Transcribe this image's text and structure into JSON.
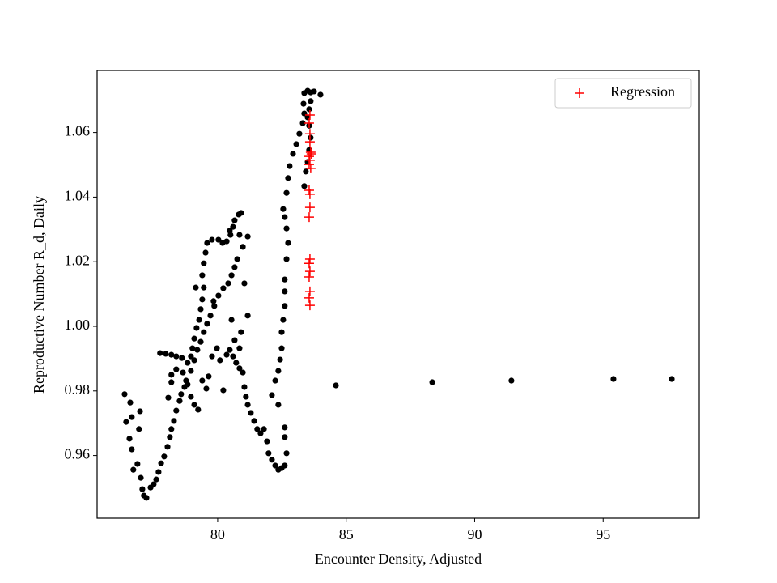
{
  "chart_data": {
    "type": "scatter",
    "x_label": "Encounter Density, Adjusted",
    "y_label": "Reproductive Number R_d, Daily",
    "xlim": [
      75.31,
      98.74
    ],
    "ylim": [
      0.9406,
      1.0792
    ],
    "xticks": [
      80,
      85,
      90,
      95
    ],
    "yticks": [
      0.96,
      0.98,
      {
        "value": 1.0,
        "label": "1.00"
      },
      1.02,
      1.04,
      1.06
    ],
    "legend": "upper right",
    "series": [
      {
        "color": "#000000",
        "marker": "dot",
        "x": [
          76.38,
          76.44,
          76.6,
          76.66,
          76.57,
          76.66,
          76.72,
          76.88,
          76.94,
          76.98,
          77.01,
          77.07,
          77.13,
          77.23,
          77.39,
          77.51,
          77.61,
          77.7,
          77.8,
          77.92,
          78.05,
          78.14,
          78.2,
          78.3,
          78.39,
          78.52,
          78.58,
          78.71,
          78.77,
          78.65,
          78.39,
          78.2,
          78.2,
          78.08,
          77.76,
          77.98,
          78.2,
          78.39,
          78.61,
          78.83,
          78.96,
          79.02,
          79.09,
          79.18,
          79.28,
          79.34,
          79.4,
          79.46,
          79.4,
          79.46,
          79.53,
          79.59,
          79.78,
          80.03,
          80.19,
          80.35,
          80.5,
          80.6,
          80.66,
          80.82,
          80.91,
          80.85,
          80.98,
          80.76,
          80.66,
          80.54,
          80.41,
          80.22,
          80.03,
          79.87,
          79.72,
          79.59,
          79.46,
          79.34,
          79.21,
          79.09,
          78.96,
          78.83,
          78.96,
          79.09,
          79.24,
          79.4,
          79.56,
          79.65,
          79.78,
          79.97,
          80.09,
          80.22,
          80.35,
          80.47,
          80.6,
          80.72,
          80.85,
          80.98,
          81.04,
          81.1,
          81.17,
          81.29,
          81.42,
          81.54,
          81.67,
          81.8,
          81.92,
          81.98,
          82.11,
          82.24,
          82.36,
          82.49,
          82.61,
          82.68,
          82.61,
          82.61,
          82.36,
          82.11,
          82.24,
          82.36,
          82.43,
          82.49,
          82.49,
          82.55,
          82.61,
          82.61,
          82.61,
          82.68,
          82.74,
          82.68,
          82.61,
          82.55,
          82.68,
          82.74,
          82.8,
          82.93,
          83.06,
          83.18,
          83.31,
          83.37,
          83.34,
          83.37,
          83.5,
          83.62,
          83.75,
          84.0,
          83.62,
          83.56,
          83.5,
          83.56,
          83.62,
          83.56,
          83.5,
          83.43,
          83.37,
          81.17,
          81.04,
          81.17,
          80.66,
          80.85,
          80.54,
          80.91,
          80.47,
          79.15,
          79.84,
          84.6,
          88.35,
          91.43,
          95.4,
          97.67
        ],
        "y": [
          0.979,
          0.9704,
          0.9764,
          0.9719,
          0.9652,
          0.9619,
          0.9556,
          0.9574,
          0.9682,
          0.9737,
          0.9531,
          0.9496,
          0.9476,
          0.9469,
          0.9501,
          0.9511,
          0.9526,
          0.9549,
          0.9576,
          0.9597,
          0.9627,
          0.9657,
          0.9682,
          0.9707,
          0.9739,
          0.9769,
          0.979,
          0.9812,
          0.9832,
          0.9857,
          0.9867,
          0.985,
          0.9827,
          0.9779,
          0.9917,
          0.9915,
          0.9912,
          0.9907,
          0.9902,
          0.9887,
          0.9907,
          0.9932,
          0.9962,
          0.9995,
          1.002,
          1.0053,
          1.0083,
          1.012,
          1.0158,
          1.0195,
          1.0228,
          1.0258,
          1.0268,
          1.0268,
          1.0258,
          1.0263,
          1.0283,
          1.0308,
          1.0328,
          1.0346,
          1.0351,
          1.0283,
          1.0246,
          1.0208,
          1.0183,
          1.0158,
          1.0133,
          1.0118,
          1.0095,
          1.0063,
          1.0033,
          1.0008,
          0.9982,
          0.9952,
          0.9927,
          0.9895,
          0.9862,
          0.982,
          0.9782,
          0.9757,
          0.9742,
          0.9832,
          0.9807,
          0.9845,
          0.9907,
          0.9932,
          0.9895,
          0.9802,
          0.9912,
          0.9927,
          0.9907,
          0.9887,
          0.987,
          0.9857,
          0.9812,
          0.9782,
          0.9757,
          0.9732,
          0.9707,
          0.9682,
          0.9669,
          0.9682,
          0.9644,
          0.9607,
          0.9587,
          0.9569,
          0.9556,
          0.9561,
          0.9569,
          0.9607,
          0.9657,
          0.9687,
          0.9757,
          0.9787,
          0.9832,
          0.9862,
          0.9897,
          0.9932,
          0.9982,
          1.002,
          1.0063,
          1.0108,
          1.0145,
          1.0208,
          1.0258,
          1.0303,
          1.0338,
          1.0363,
          1.0413,
          1.0459,
          1.0496,
          1.0534,
          1.0564,
          1.0596,
          1.0629,
          1.0659,
          1.0689,
          1.0722,
          1.0729,
          1.0724,
          1.0727,
          1.0717,
          1.0697,
          1.0672,
          1.0647,
          1.0621,
          1.0584,
          1.0546,
          1.0509,
          1.0479,
          1.0434,
          1.0033,
          1.0133,
          1.0278,
          0.9957,
          0.9932,
          1.002,
          0.9982,
          1.0296,
          1.012,
          1.0078,
          0.9817,
          0.9827,
          0.9832,
          0.9837,
          0.9837
        ]
      },
      {
        "name": "Regression",
        "color": "#ff0000",
        "marker": "plus",
        "x": [
          83.59,
          83.56,
          83.59,
          83.59,
          83.62,
          83.65,
          83.56,
          83.59,
          83.56,
          83.62,
          83.56,
          83.59,
          83.59,
          83.56,
          83.59,
          83.56,
          83.59,
          83.56,
          83.59,
          83.56,
          83.59
        ],
        "y": [
          1.0654,
          1.0629,
          1.0596,
          1.0571,
          1.0539,
          1.0534,
          1.0526,
          1.0514,
          1.0501,
          1.0489,
          1.0421,
          1.0409,
          1.0368,
          1.0338,
          1.0208,
          1.0195,
          1.017,
          1.0153,
          1.0108,
          1.0088,
          1.0065
        ]
      }
    ]
  }
}
